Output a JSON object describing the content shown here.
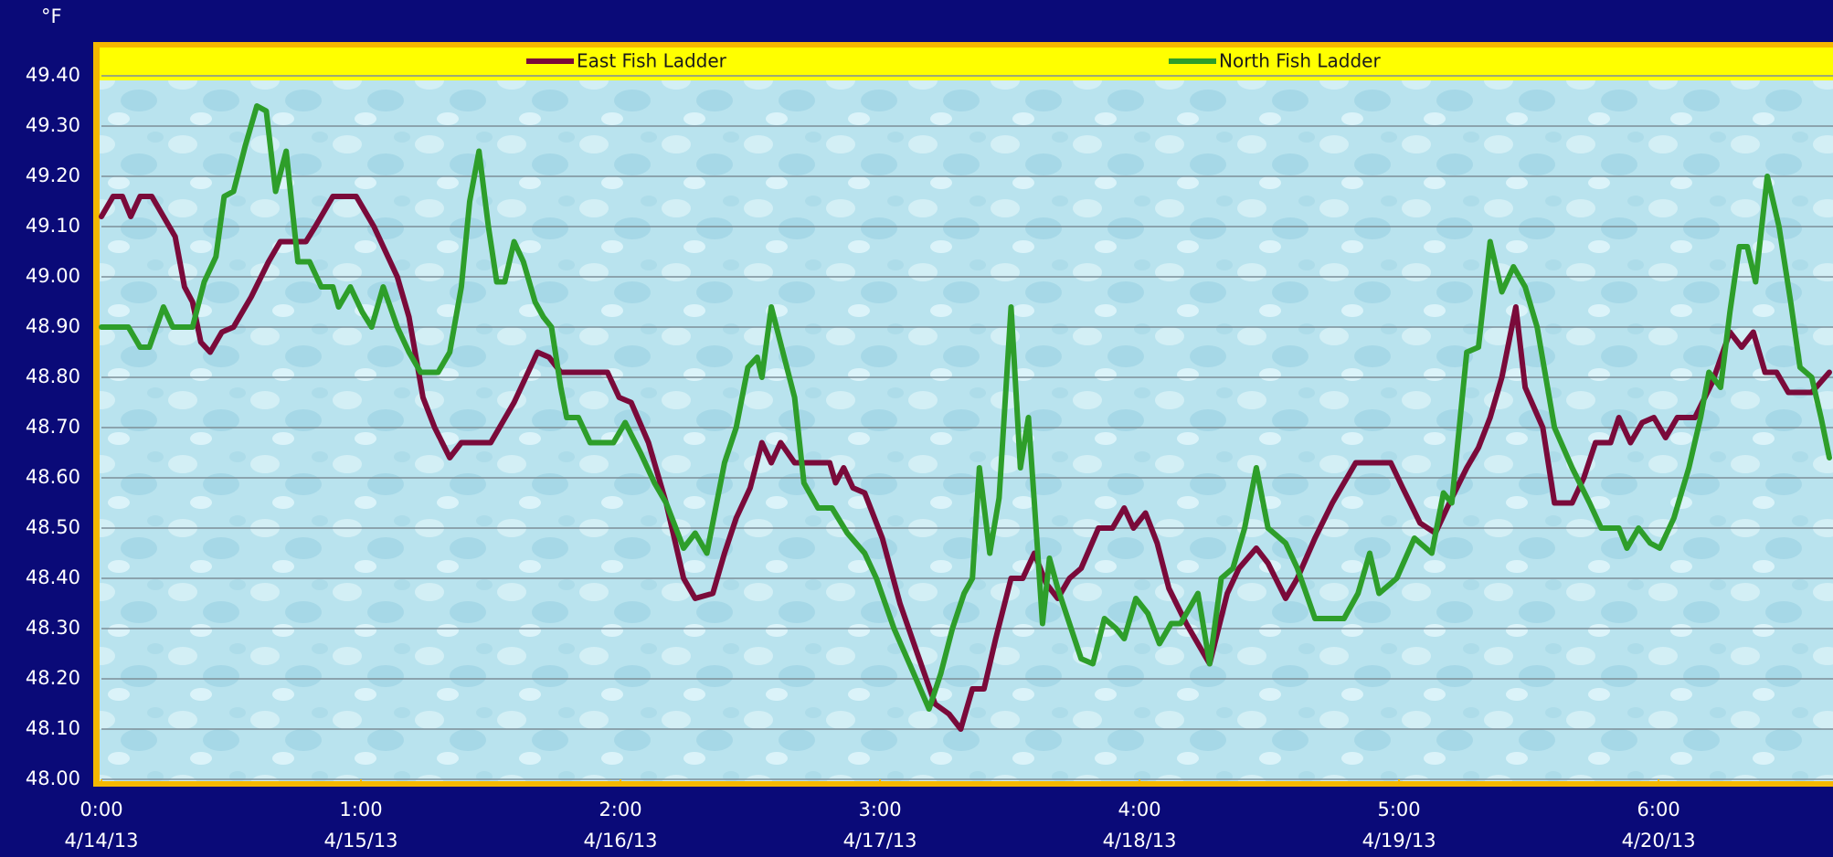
{
  "chart_data": {
    "type": "line",
    "y_label": "°F",
    "xlim": [
      0,
      6.658
    ],
    "ylim": [
      48.0,
      49.4
    ],
    "xticks": [
      {
        "value": 0,
        "label": [
          "0:00",
          "4/14/13"
        ]
      },
      {
        "value": 1,
        "label": [
          "1:00",
          "4/15/13"
        ]
      },
      {
        "value": 2,
        "label": [
          "2:00",
          "4/16/13"
        ]
      },
      {
        "value": 3,
        "label": [
          "3:00",
          "4/17/13"
        ]
      },
      {
        "value": 4,
        "label": [
          "4:00",
          "4/18/13"
        ]
      },
      {
        "value": 5,
        "label": [
          "5:00",
          "4/19/13"
        ]
      },
      {
        "value": 6,
        "label": [
          "6:00",
          "4/20/13"
        ]
      }
    ],
    "yticks": [
      {
        "value": 48.0,
        "label": "48.00"
      },
      {
        "value": 48.1,
        "label": "48.10"
      },
      {
        "value": 48.2,
        "label": "48.20"
      },
      {
        "value": 48.3,
        "label": "48.30"
      },
      {
        "value": 48.4,
        "label": "48.40"
      },
      {
        "value": 48.5,
        "label": "48.50"
      },
      {
        "value": 48.6,
        "label": "48.60"
      },
      {
        "value": 48.7,
        "label": "48.70"
      },
      {
        "value": 48.8,
        "label": "48.80"
      },
      {
        "value": 48.9,
        "label": "48.90"
      },
      {
        "value": 49.0,
        "label": "49.00"
      },
      {
        "value": 49.1,
        "label": "49.10"
      },
      {
        "value": 49.2,
        "label": "49.20"
      },
      {
        "value": 49.3,
        "label": "49.30"
      },
      {
        "value": 49.4,
        "label": "49.40"
      }
    ],
    "grid": true,
    "legend": "top",
    "series": [
      {
        "name": "East Fish Ladder",
        "color": "#7a0a3a",
        "x": [
          0,
          0.045,
          0.081,
          0.113,
          0.149,
          0.194,
          0.239,
          0.284,
          0.32,
          0.351,
          0.383,
          0.419,
          0.464,
          0.509,
          0.577,
          0.644,
          0.689,
          0.788,
          0.824,
          0.892,
          0.982,
          1.05,
          1.14,
          1.185,
          1.239,
          1.284,
          1.342,
          1.387,
          1.5,
          1.59,
          1.68,
          1.725,
          1.77,
          1.95,
          1.995,
          2.041,
          2.108,
          2.176,
          2.243,
          2.288,
          2.356,
          2.401,
          2.446,
          2.5,
          2.545,
          2.581,
          2.617,
          2.671,
          2.806,
          2.829,
          2.86,
          2.896,
          2.941,
          3.009,
          3.077,
          3.144,
          3.212,
          3.266,
          3.311,
          3.356,
          3.401,
          3.446,
          3.505,
          3.55,
          3.595,
          3.64,
          3.685,
          3.73,
          3.775,
          3.842,
          3.896,
          3.941,
          3.977,
          4.023,
          4.068,
          4.113,
          4.18,
          4.225,
          4.27,
          4.338,
          4.383,
          4.45,
          4.495,
          4.563,
          4.608,
          4.676,
          4.743,
          4.833,
          4.968,
          5.014,
          5.081,
          5.14,
          5.194,
          5.261,
          5.306,
          5.351,
          5.396,
          5.45,
          5.486,
          5.554,
          5.599,
          5.667,
          5.712,
          5.757,
          5.815,
          5.847,
          5.892,
          5.937,
          5.982,
          6.027,
          6.072,
          6.14,
          6.207,
          6.275,
          6.32,
          6.365,
          6.41,
          6.455,
          6.5,
          6.59,
          6.658
        ],
        "values": [
          49.12,
          49.16,
          49.16,
          49.12,
          49.16,
          49.16,
          49.12,
          49.08,
          48.98,
          48.95,
          48.87,
          48.85,
          48.89,
          48.9,
          48.96,
          49.03,
          49.07,
          49.07,
          49.1,
          49.16,
          49.16,
          49.1,
          49.0,
          48.92,
          48.76,
          48.7,
          48.64,
          48.67,
          48.67,
          48.75,
          48.85,
          48.84,
          48.81,
          48.81,
          48.76,
          48.75,
          48.67,
          48.55,
          48.4,
          48.36,
          48.37,
          48.45,
          48.52,
          48.58,
          48.67,
          48.63,
          48.67,
          48.63,
          48.63,
          48.59,
          48.62,
          48.58,
          48.57,
          48.48,
          48.35,
          48.25,
          48.15,
          48.13,
          48.1,
          48.18,
          48.18,
          48.28,
          48.4,
          48.4,
          48.45,
          48.39,
          48.36,
          48.4,
          48.42,
          48.5,
          48.5,
          48.54,
          48.5,
          48.53,
          48.47,
          48.38,
          48.31,
          48.27,
          48.23,
          48.37,
          48.42,
          48.46,
          48.43,
          48.36,
          48.4,
          48.48,
          48.55,
          48.63,
          48.63,
          48.58,
          48.51,
          48.49,
          48.55,
          48.62,
          48.66,
          48.72,
          48.8,
          48.94,
          48.78,
          48.7,
          48.55,
          48.55,
          48.6,
          48.67,
          48.67,
          48.72,
          48.67,
          48.71,
          48.72,
          48.68,
          48.72,
          48.72,
          48.79,
          48.89,
          48.86,
          48.89,
          48.81,
          48.81,
          48.77,
          48.77,
          48.81
        ]
      },
      {
        "name": "North Fish Ladder",
        "color": "#2e9e2a",
        "x": [
          0,
          0.104,
          0.149,
          0.185,
          0.239,
          0.275,
          0.351,
          0.396,
          0.441,
          0.473,
          0.509,
          0.554,
          0.599,
          0.635,
          0.671,
          0.712,
          0.757,
          0.802,
          0.847,
          0.892,
          0.914,
          0.959,
          1.005,
          1.041,
          1.086,
          1.14,
          1.185,
          1.23,
          1.297,
          1.342,
          1.387,
          1.419,
          1.455,
          1.491,
          1.523,
          1.554,
          1.59,
          1.626,
          1.671,
          1.703,
          1.734,
          1.77,
          1.793,
          1.838,
          1.883,
          1.973,
          2.018,
          2.077,
          2.131,
          2.176,
          2.243,
          2.288,
          2.333,
          2.401,
          2.446,
          2.491,
          2.527,
          2.545,
          2.581,
          2.626,
          2.671,
          2.707,
          2.761,
          2.815,
          2.874,
          2.941,
          2.986,
          3.054,
          3.122,
          3.189,
          3.234,
          3.279,
          3.324,
          3.356,
          3.383,
          3.423,
          3.459,
          3.505,
          3.541,
          3.572,
          3.595,
          3.626,
          3.653,
          3.685,
          3.73,
          3.775,
          3.82,
          3.865,
          3.91,
          3.941,
          3.986,
          4.032,
          4.077,
          4.122,
          4.158,
          4.225,
          4.27,
          4.315,
          4.36,
          4.405,
          4.45,
          4.495,
          4.563,
          4.608,
          4.676,
          4.788,
          4.842,
          4.887,
          4.923,
          4.991,
          5.059,
          5.126,
          5.171,
          5.203,
          5.261,
          5.306,
          5.351,
          5.396,
          5.441,
          5.486,
          5.532,
          5.599,
          5.667,
          5.734,
          5.779,
          5.847,
          5.878,
          5.923,
          5.968,
          6.005,
          6.059,
          6.117,
          6.162,
          6.194,
          6.239,
          6.275,
          6.311,
          6.342,
          6.374,
          6.419,
          6.464,
          6.509,
          6.545,
          6.59,
          6.626,
          6.658
        ],
        "values": [
          48.9,
          48.9,
          48.86,
          48.86,
          48.94,
          48.9,
          48.9,
          48.99,
          49.04,
          49.16,
          49.17,
          49.26,
          49.34,
          49.33,
          49.17,
          49.25,
          49.03,
          49.03,
          48.98,
          48.98,
          48.94,
          48.98,
          48.93,
          48.9,
          48.98,
          48.9,
          48.85,
          48.81,
          48.81,
          48.85,
          48.98,
          49.15,
          49.25,
          49.1,
          48.99,
          48.99,
          49.07,
          49.03,
          48.95,
          48.92,
          48.9,
          48.78,
          48.72,
          48.72,
          48.67,
          48.67,
          48.71,
          48.65,
          48.59,
          48.55,
          48.46,
          48.49,
          48.45,
          48.63,
          48.7,
          48.82,
          48.84,
          48.8,
          48.94,
          48.85,
          48.76,
          48.59,
          48.54,
          48.54,
          48.49,
          48.45,
          48.4,
          48.3,
          48.22,
          48.14,
          48.21,
          48.3,
          48.37,
          48.4,
          48.62,
          48.45,
          48.56,
          48.94,
          48.62,
          48.72,
          48.55,
          48.31,
          48.44,
          48.38,
          48.31,
          48.24,
          48.23,
          48.32,
          48.3,
          48.28,
          48.36,
          48.33,
          48.27,
          48.31,
          48.31,
          48.37,
          48.23,
          48.4,
          48.42,
          48.5,
          48.62,
          48.5,
          48.47,
          48.42,
          48.32,
          48.32,
          48.37,
          48.45,
          48.37,
          48.4,
          48.48,
          48.45,
          48.57,
          48.55,
          48.85,
          48.86,
          49.07,
          48.97,
          49.02,
          48.98,
          48.9,
          48.7,
          48.62,
          48.55,
          48.5,
          48.5,
          48.46,
          48.5,
          48.47,
          48.46,
          48.52,
          48.62,
          48.72,
          48.81,
          48.78,
          48.93,
          49.06,
          49.06,
          48.99,
          49.2,
          49.1,
          48.95,
          48.82,
          48.8,
          48.72,
          48.64
        ]
      }
    ]
  }
}
